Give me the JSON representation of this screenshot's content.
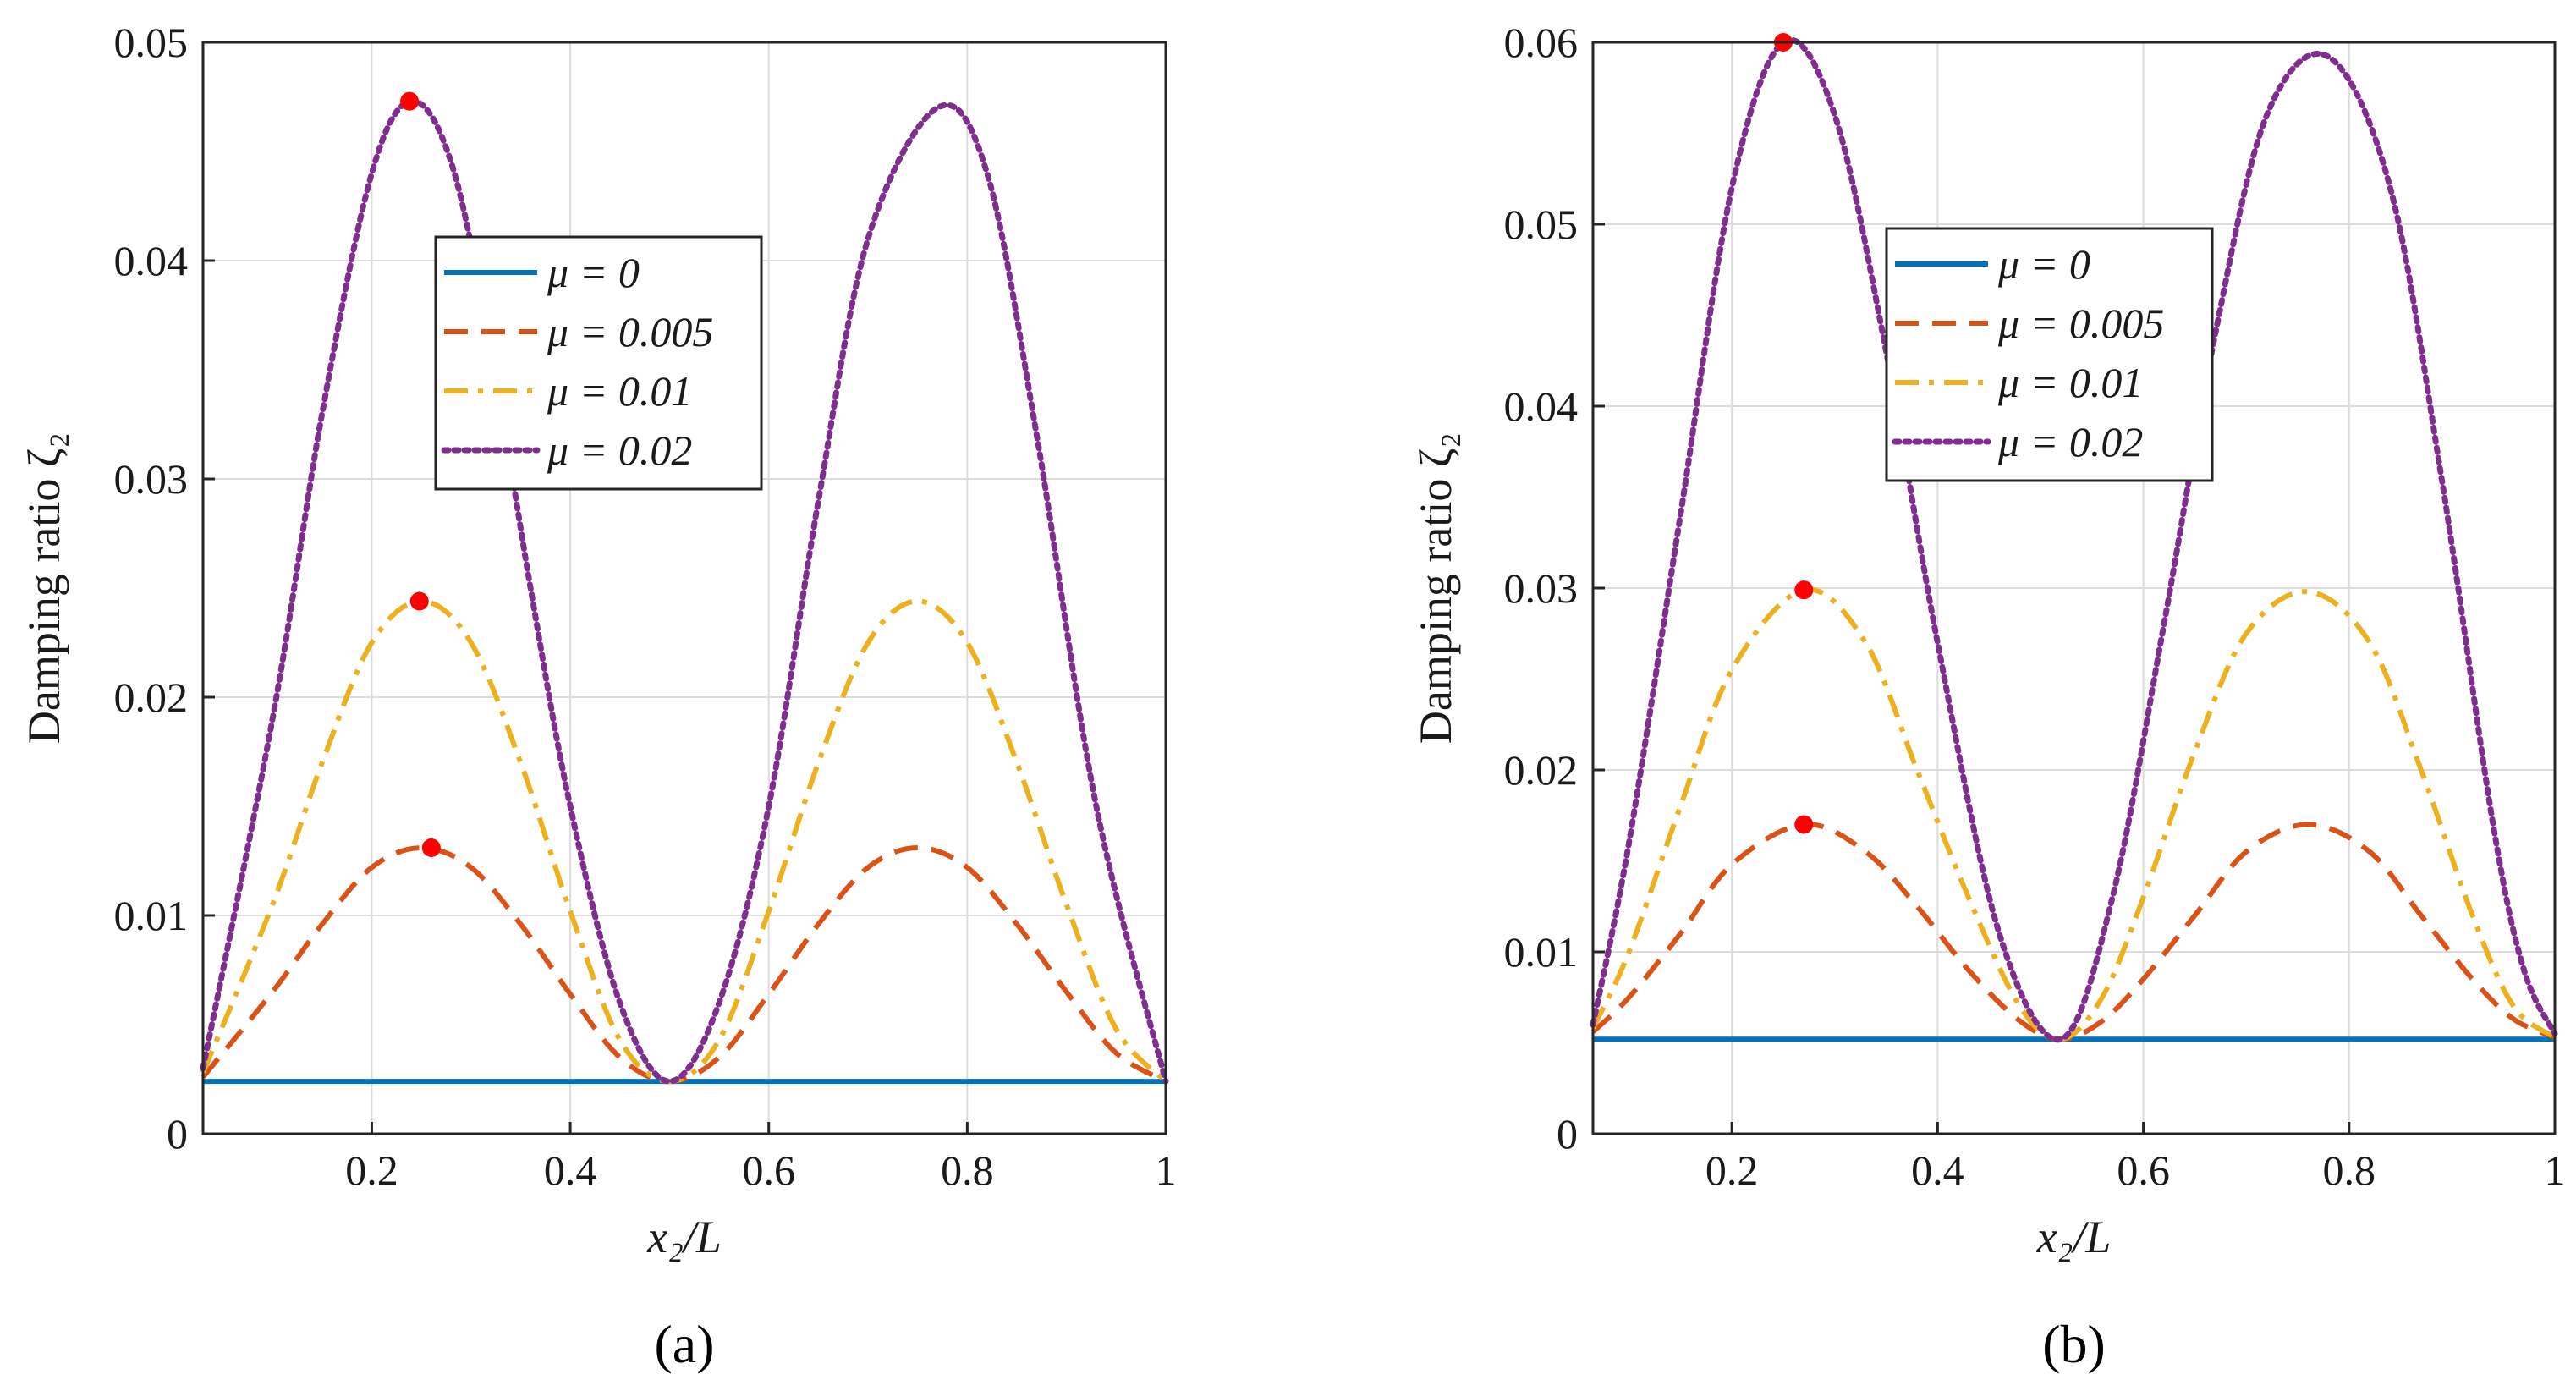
{
  "chart_data": [
    {
      "type": "line",
      "panel_label": "(a)",
      "xlabel": "x₂/L",
      "ylabel": "Damping ratio ζ₂",
      "xlim": [
        0.03,
        1
      ],
      "ylim": [
        0,
        0.05
      ],
      "xticks": [
        0.2,
        0.4,
        0.6,
        0.8,
        1
      ],
      "xtick_labels": [
        "0.2",
        "0.4",
        "0.6",
        "0.8",
        "1"
      ],
      "yticks": [
        0,
        0.01,
        0.02,
        0.03,
        0.04,
        0.05
      ],
      "ytick_labels": [
        "0",
        "0.01",
        "0.02",
        "0.03",
        "0.04",
        "0.05"
      ],
      "grid": true,
      "legend_position": "upper-middle",
      "series": [
        {
          "name": "μ = 0",
          "color": "#0072BD",
          "style": "solid",
          "x": [
            0.03,
            0.5,
            1.0
          ],
          "y": [
            0.0024,
            0.0024,
            0.0024
          ]
        },
        {
          "name": "μ = 0.005",
          "color": "#D95319",
          "style": "dashed",
          "x": [
            0.03,
            0.1,
            0.15,
            0.2,
            0.25,
            0.3,
            0.35,
            0.4,
            0.45,
            0.5,
            0.55,
            0.6,
            0.65,
            0.7,
            0.75,
            0.8,
            0.85,
            0.9,
            0.95,
            1.0
          ],
          "y": [
            0.0026,
            0.0065,
            0.0096,
            0.0122,
            0.0131,
            0.0122,
            0.0096,
            0.0064,
            0.0035,
            0.0024,
            0.0035,
            0.0064,
            0.0096,
            0.0122,
            0.0131,
            0.0122,
            0.0096,
            0.0065,
            0.0037,
            0.0024
          ]
        },
        {
          "name": "μ = 0.01",
          "color": "#EDB120",
          "style": "dashdot",
          "x": [
            0.03,
            0.1,
            0.15,
            0.2,
            0.25,
            0.3,
            0.35,
            0.4,
            0.45,
            0.5,
            0.55,
            0.6,
            0.65,
            0.7,
            0.75,
            0.8,
            0.85,
            0.9,
            0.95,
            1.0
          ],
          "y": [
            0.0028,
            0.0105,
            0.017,
            0.0225,
            0.0244,
            0.0225,
            0.017,
            0.0102,
            0.0043,
            0.0024,
            0.0043,
            0.0102,
            0.017,
            0.0225,
            0.0244,
            0.0225,
            0.017,
            0.0105,
            0.0048,
            0.0024
          ]
        },
        {
          "name": "μ = 0.02",
          "color": "#7E2F8E",
          "style": "dotted",
          "x": [
            0.03,
            0.1,
            0.15,
            0.2,
            0.24,
            0.28,
            0.32,
            0.36,
            0.4,
            0.45,
            0.5,
            0.55,
            0.6,
            0.65,
            0.7,
            0.77,
            0.82,
            0.87,
            0.93,
            1.0
          ],
          "y": [
            0.003,
            0.019,
            0.033,
            0.044,
            0.0473,
            0.0445,
            0.036,
            0.025,
            0.015,
            0.006,
            0.0024,
            0.006,
            0.015,
            0.029,
            0.041,
            0.047,
            0.044,
            0.032,
            0.015,
            0.0024
          ]
        }
      ],
      "markers": {
        "color": "#FF0000",
        "points": [
          [
            0.238,
            0.0473
          ],
          [
            0.248,
            0.0244
          ],
          [
            0.26,
            0.0131
          ]
        ]
      }
    },
    {
      "type": "line",
      "panel_label": "(b)",
      "xlabel": "x₂/L",
      "ylabel": "Damping ratio ζ₂",
      "xlim": [
        0.065,
        1
      ],
      "ylim": [
        0,
        0.06
      ],
      "xticks": [
        0.2,
        0.4,
        0.6,
        0.8,
        1
      ],
      "xtick_labels": [
        "0.2",
        "0.4",
        "0.6",
        "0.8",
        "1"
      ],
      "yticks": [
        0,
        0.01,
        0.02,
        0.03,
        0.04,
        0.05,
        0.06
      ],
      "ytick_labels": [
        "0",
        "0.01",
        "0.02",
        "0.03",
        "0.04",
        "0.05",
        "0.06"
      ],
      "grid": true,
      "legend_position": "upper-middle",
      "series": [
        {
          "name": "μ = 0",
          "color": "#0072BD",
          "style": "solid",
          "x": [
            0.065,
            0.52,
            1.0
          ],
          "y": [
            0.0052,
            0.0052,
            0.0052
          ]
        },
        {
          "name": "μ = 0.005",
          "color": "#D95319",
          "style": "dashed",
          "x": [
            0.065,
            0.1,
            0.15,
            0.2,
            0.27,
            0.33,
            0.38,
            0.43,
            0.48,
            0.52,
            0.56,
            0.6,
            0.65,
            0.7,
            0.76,
            0.82,
            0.87,
            0.92,
            0.96,
            1.0
          ],
          "y": [
            0.0056,
            0.0075,
            0.011,
            0.0148,
            0.017,
            0.0155,
            0.0125,
            0.009,
            0.0062,
            0.0052,
            0.0062,
            0.0085,
            0.012,
            0.0155,
            0.017,
            0.0155,
            0.012,
            0.0085,
            0.0063,
            0.0053
          ]
        },
        {
          "name": "μ = 0.01",
          "color": "#EDB120",
          "style": "dashdot",
          "x": [
            0.065,
            0.1,
            0.15,
            0.2,
            0.27,
            0.33,
            0.38,
            0.43,
            0.48,
            0.52,
            0.56,
            0.6,
            0.65,
            0.7,
            0.76,
            0.82,
            0.87,
            0.92,
            0.96,
            1.0
          ],
          "y": [
            0.0058,
            0.01,
            0.018,
            0.0255,
            0.0299,
            0.027,
            0.02,
            0.013,
            0.007,
            0.0052,
            0.0075,
            0.013,
            0.021,
            0.0275,
            0.0298,
            0.027,
            0.02,
            0.012,
            0.007,
            0.0053
          ]
        },
        {
          "name": "μ = 0.02",
          "color": "#7E2F8E",
          "style": "dotted",
          "x": [
            0.065,
            0.1,
            0.15,
            0.2,
            0.25,
            0.3,
            0.35,
            0.4,
            0.46,
            0.52,
            0.57,
            0.62,
            0.67,
            0.72,
            0.78,
            0.84,
            0.89,
            0.94,
            0.97,
            1.0
          ],
          "y": [
            0.006,
            0.016,
            0.034,
            0.052,
            0.06,
            0.056,
            0.043,
            0.027,
            0.011,
            0.0052,
            0.013,
            0.028,
            0.044,
            0.056,
            0.0592,
            0.052,
            0.036,
            0.017,
            0.009,
            0.0055
          ]
        }
      ],
      "markers": {
        "color": "#FF0000",
        "points": [
          [
            0.25,
            0.06
          ],
          [
            0.27,
            0.0299
          ],
          [
            0.27,
            0.017
          ]
        ]
      }
    }
  ]
}
